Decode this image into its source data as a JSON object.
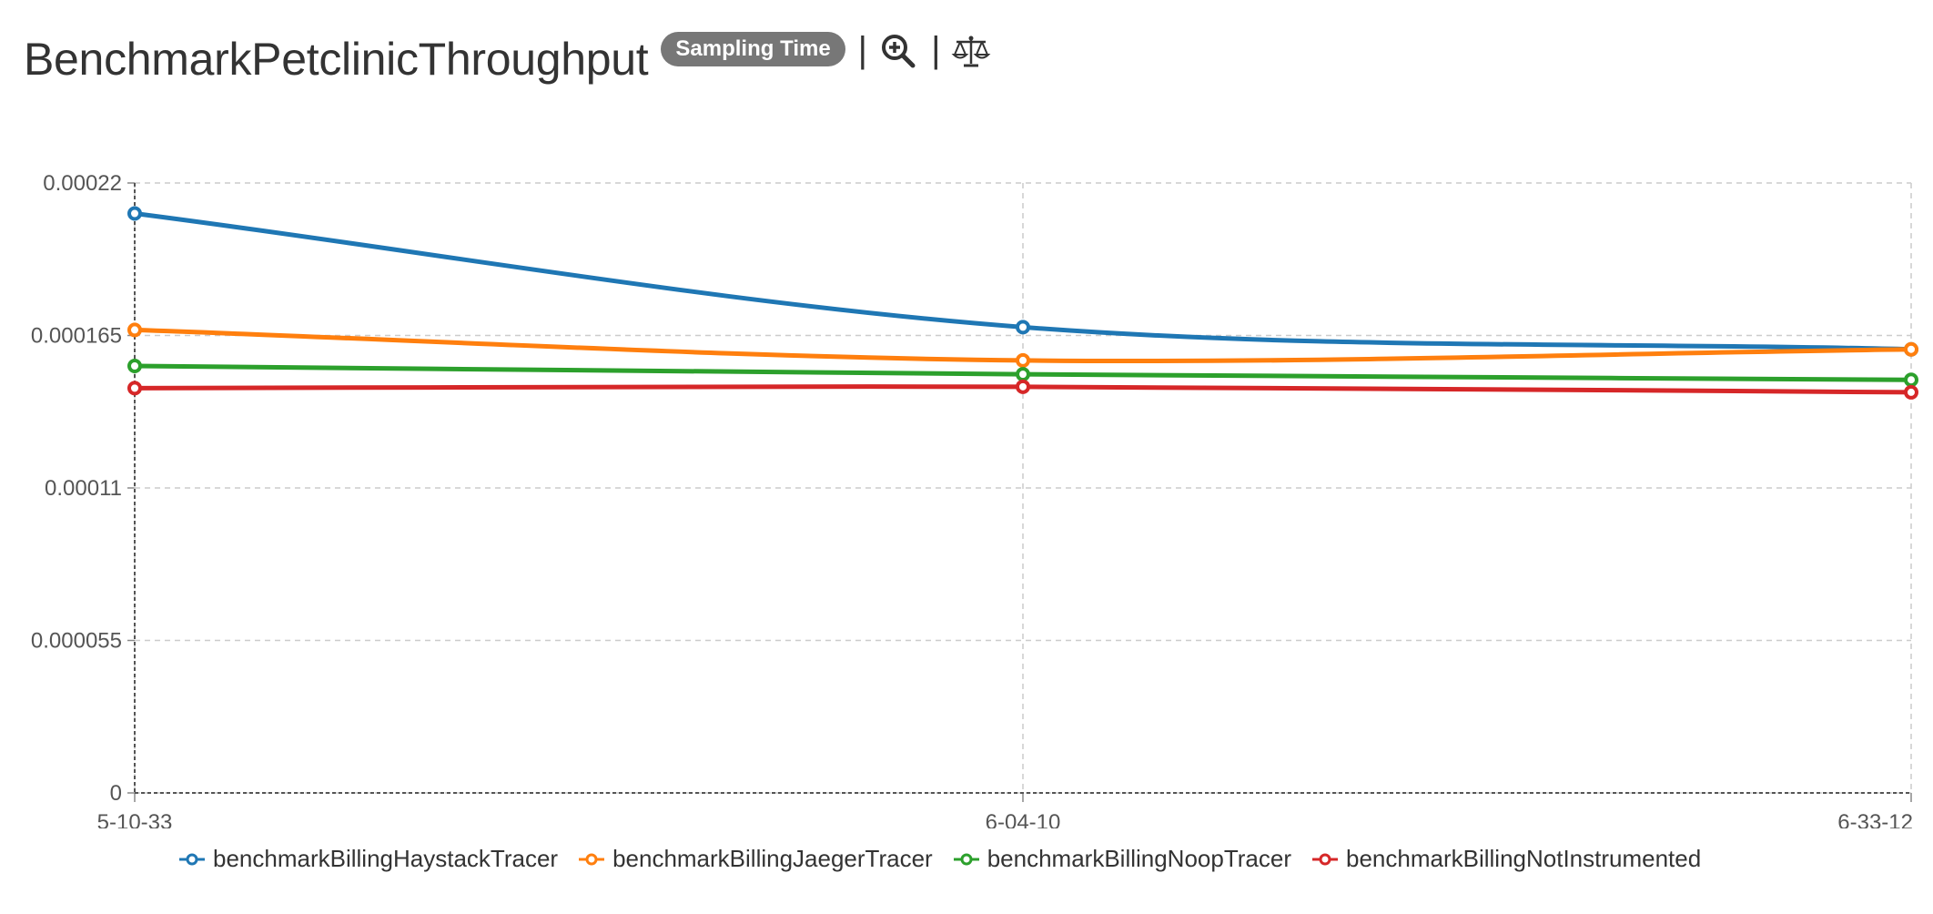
{
  "header": {
    "title": "BenchmarkPetclinicThroughput",
    "badge_label": "Sampling Time",
    "separator": "|",
    "zoom_icon": "zoom-in-icon",
    "compare_icon": "scale-balance-icon"
  },
  "chart_data": {
    "type": "line",
    "title": "",
    "xlabel": "",
    "ylabel": "",
    "categories": [
      "5-10-33",
      "6-04-10",
      "6-33-12"
    ],
    "ylim": [
      0,
      0.00022
    ],
    "yticks": [
      "0",
      "0.000055",
      "0.00011",
      "0.000165",
      "0.00022"
    ],
    "grid": true,
    "legend_position": "bottom",
    "series": [
      {
        "name": "benchmarkBillingHaystackTracer",
        "color": "#1f77b4",
        "values": [
          0.000209,
          0.000168,
          0.00016
        ]
      },
      {
        "name": "benchmarkBillingJaegerTracer",
        "color": "#ff7f0e",
        "values": [
          0.000167,
          0.000156,
          0.00016
        ]
      },
      {
        "name": "benchmarkBillingNoopTracer",
        "color": "#2ca02c",
        "values": [
          0.000154,
          0.000151,
          0.000149
        ]
      },
      {
        "name": "benchmarkBillingNotInstrumented",
        "color": "#d62728",
        "values": [
          0.000146,
          0.0001465,
          0.0001445
        ]
      }
    ]
  }
}
